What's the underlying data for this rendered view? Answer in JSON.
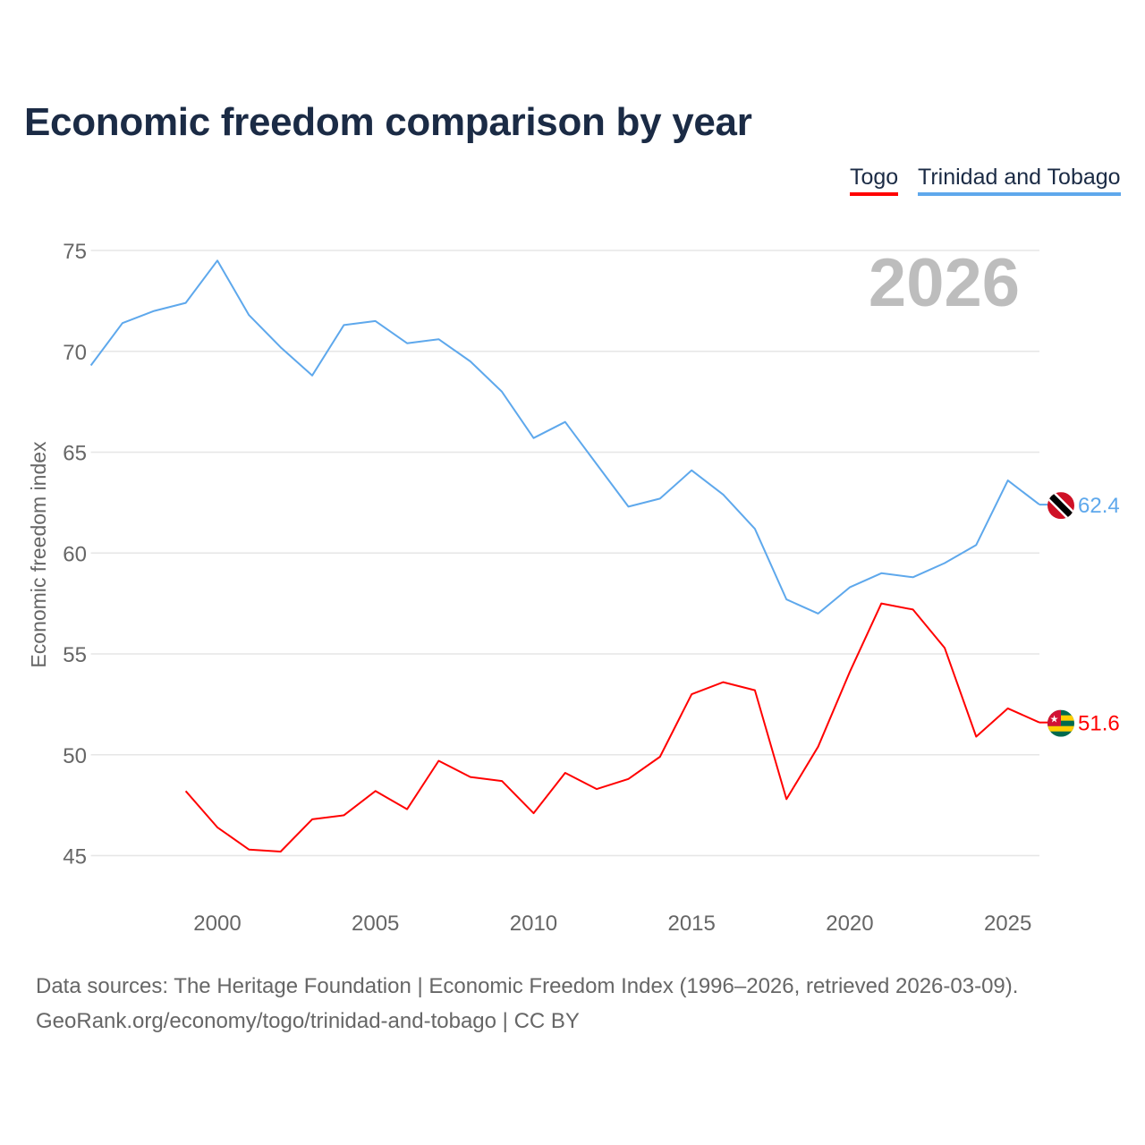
{
  "title": "Economic freedom comparison by year",
  "footer": {
    "line1": "Data sources: The Heritage Foundation | Economic Freedom Index (1996–2026, retrieved 2026-03-09).",
    "line2": "GeoRank.org/economy/togo/trinidad-and-tobago | CC BY"
  },
  "chart_data": {
    "type": "line",
    "title": "Economic freedom comparison by year",
    "ylabel": "Economic freedom index",
    "xlabel": "",
    "year_label": "2026",
    "xlim": [
      1996,
      2026
    ],
    "ylim": [
      43,
      77
    ],
    "yticks": [
      45,
      50,
      55,
      60,
      65,
      70,
      75
    ],
    "xticks": [
      2000,
      2005,
      2010,
      2015,
      2020,
      2025
    ],
    "grid": true,
    "legend_position": "top-right",
    "series": [
      {
        "name": "Togo",
        "color": "#ff0000",
        "end_label": "51.6",
        "flag": "togo",
        "x": [
          1999,
          2000,
          2001,
          2002,
          2003,
          2004,
          2005,
          2006,
          2007,
          2008,
          2009,
          2010,
          2011,
          2012,
          2013,
          2014,
          2015,
          2016,
          2017,
          2018,
          2019,
          2020,
          2021,
          2022,
          2023,
          2024,
          2025,
          2026
        ],
        "values": [
          48.2,
          46.4,
          45.3,
          45.2,
          46.8,
          47.0,
          48.2,
          47.3,
          49.7,
          48.9,
          48.7,
          47.1,
          49.1,
          48.3,
          48.8,
          49.9,
          53.0,
          53.6,
          53.2,
          47.8,
          50.4,
          54.1,
          57.5,
          57.2,
          55.3,
          50.9,
          52.3,
          51.6
        ]
      },
      {
        "name": "Trinidad and Tobago",
        "color": "#5ea8ec",
        "end_label": "62.4",
        "flag": "trinidad",
        "x": [
          1996,
          1997,
          1998,
          1999,
          2000,
          2001,
          2002,
          2003,
          2004,
          2005,
          2006,
          2007,
          2008,
          2009,
          2010,
          2011,
          2012,
          2013,
          2014,
          2015,
          2016,
          2017,
          2018,
          2019,
          2020,
          2021,
          2022,
          2023,
          2024,
          2025,
          2026
        ],
        "values": [
          69.3,
          71.4,
          72.0,
          72.4,
          74.5,
          71.8,
          70.2,
          68.8,
          71.3,
          71.5,
          70.4,
          70.6,
          69.5,
          68.0,
          65.7,
          66.5,
          64.4,
          62.3,
          62.7,
          64.1,
          62.9,
          61.2,
          57.7,
          57.0,
          58.3,
          59.0,
          58.8,
          59.5,
          60.4,
          63.6,
          62.4
        ]
      }
    ]
  }
}
